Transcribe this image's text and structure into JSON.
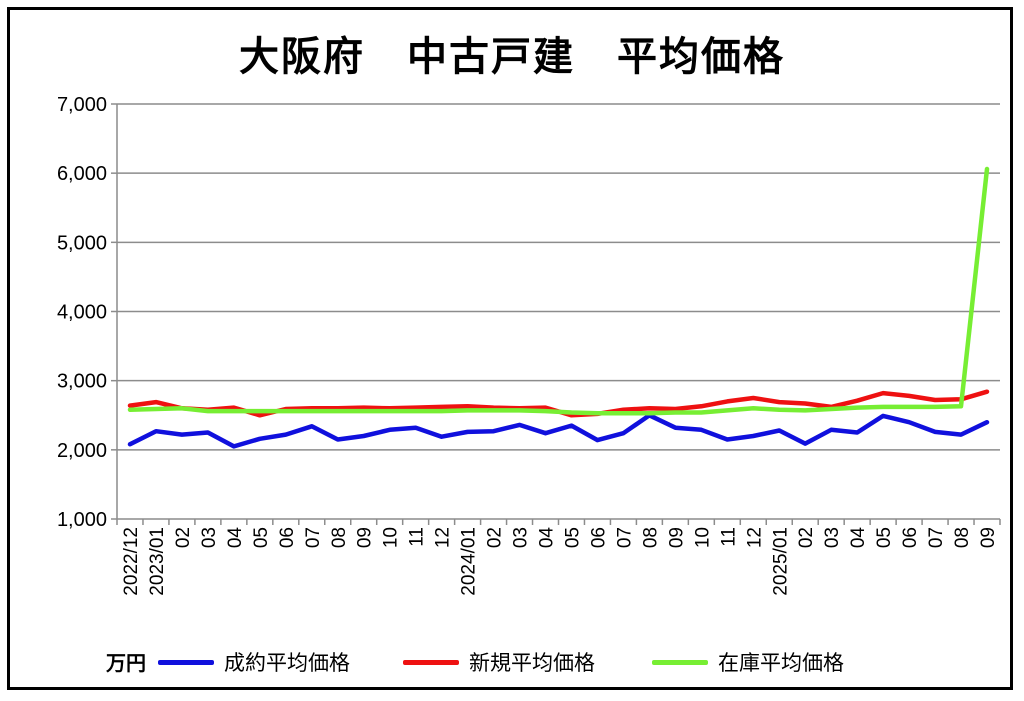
{
  "chart_data": {
    "type": "line",
    "title": "大阪府　中古戸建　平均価格",
    "unit_label": "万円",
    "ylim": [
      1000,
      7000
    ],
    "yticks": [
      "1,000",
      "2,000",
      "3,000",
      "4,000",
      "5,000",
      "6,000",
      "7,000"
    ],
    "ytick_values": [
      1000,
      2000,
      3000,
      4000,
      5000,
      6000,
      7000
    ],
    "grid": true,
    "legend_position": "bottom",
    "categories": [
      "2022/12",
      "2023/01",
      "02",
      "03",
      "04",
      "05",
      "06",
      "07",
      "08",
      "09",
      "10",
      "11",
      "12",
      "2024/01",
      "02",
      "03",
      "04",
      "05",
      "06",
      "07",
      "08",
      "09",
      "10",
      "11",
      "12",
      "2025/01",
      "02",
      "03",
      "04",
      "05",
      "06",
      "07",
      "08",
      "09"
    ],
    "series": [
      {
        "name": "成約平均価格",
        "color": "#1010dd",
        "values": [
          2080,
          2270,
          2220,
          2250,
          2050,
          2160,
          2220,
          2340,
          2150,
          2200,
          2290,
          2320,
          2190,
          2260,
          2270,
          2360,
          2240,
          2350,
          2140,
          2240,
          2500,
          2320,
          2290,
          2150,
          2200,
          2280,
          2090,
          2290,
          2250,
          2490,
          2400,
          2260,
          2220,
          2400
        ]
      },
      {
        "name": "新規平均価格",
        "color": "#ee1111",
        "values": [
          2640,
          2690,
          2600,
          2580,
          2610,
          2500,
          2590,
          2600,
          2600,
          2610,
          2600,
          2610,
          2620,
          2630,
          2610,
          2600,
          2610,
          2500,
          2520,
          2580,
          2600,
          2590,
          2630,
          2700,
          2750,
          2690,
          2670,
          2620,
          2710,
          2820,
          2780,
          2720,
          2730,
          2840
        ]
      },
      {
        "name": "在庫平均価格",
        "color": "#77ee33",
        "values": [
          2580,
          2590,
          2600,
          2560,
          2560,
          2560,
          2560,
          2560,
          2560,
          2560,
          2560,
          2560,
          2560,
          2570,
          2570,
          2570,
          2560,
          2540,
          2530,
          2530,
          2530,
          2540,
          2540,
          2570,
          2600,
          2580,
          2570,
          2590,
          2610,
          2620,
          2620,
          2620,
          2630,
          6060
        ]
      }
    ]
  }
}
